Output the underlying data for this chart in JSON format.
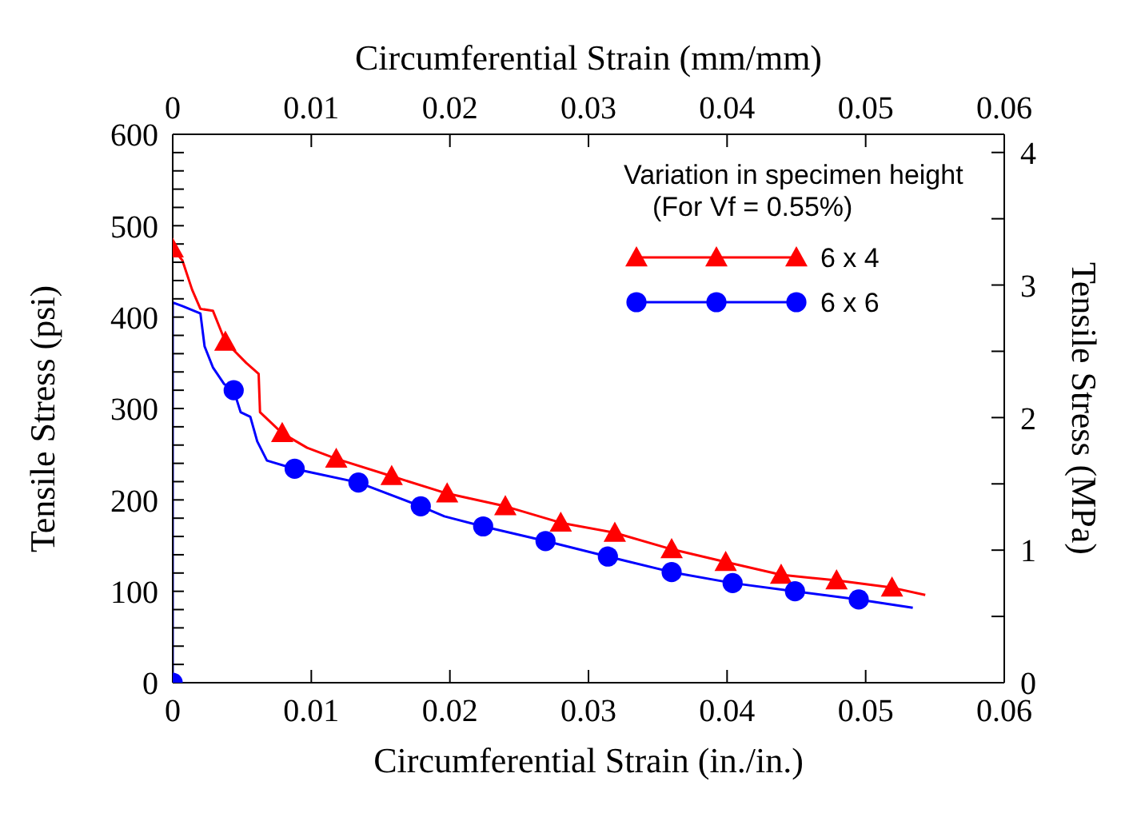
{
  "chart_data": {
    "type": "line",
    "xlabel": "Circumferential Strain (in./in.)",
    "x2label": "Circumferential Strain (mm/mm)",
    "ylabel": "Tensile Stress (psi)",
    "y2label": "Tensile Stress (MPa)",
    "legend_title": "Variation in specimen height\n(For Vf = 0.55%)",
    "xlim": [
      0,
      0.06
    ],
    "xticks": [
      0,
      0.01,
      0.02,
      0.03,
      0.04,
      0.05,
      0.06
    ],
    "x2lim": [
      0,
      0.06
    ],
    "x2ticks": [
      0,
      0.01,
      0.02,
      0.03,
      0.04,
      0.05,
      0.06
    ],
    "ylim": [
      0,
      600
    ],
    "yticks": [
      0,
      {
        "value": 20,
        "label": null
      },
      {
        "value": 40,
        "label": null
      },
      {
        "value": 60,
        "label": null
      },
      {
        "value": 80,
        "label": null
      },
      100,
      {
        "value": 120,
        "label": null
      },
      {
        "value": 140,
        "label": null
      },
      {
        "value": 160,
        "label": null
      },
      {
        "value": 180,
        "label": null
      },
      200,
      {
        "value": 220,
        "label": null
      },
      {
        "value": 240,
        "label": null
      },
      {
        "value": 260,
        "label": null
      },
      {
        "value": 280,
        "label": null
      },
      300,
      {
        "value": 320,
        "label": null
      },
      {
        "value": 340,
        "label": null
      },
      {
        "value": 360,
        "label": null
      },
      {
        "value": 380,
        "label": null
      },
      400,
      {
        "value": 420,
        "label": null
      },
      {
        "value": 440,
        "label": null
      },
      {
        "value": 460,
        "label": null
      },
      {
        "value": 480,
        "label": null
      },
      500,
      {
        "value": 520,
        "label": null
      },
      {
        "value": 540,
        "label": null
      },
      {
        "value": 560,
        "label": null
      },
      {
        "value": 580,
        "label": null
      },
      600
    ],
    "y2lim": [
      0,
      4.137
    ],
    "y2ticks": [
      0,
      {
        "value": 0.5,
        "label": null
      },
      1,
      {
        "value": 1.5,
        "label": null
      },
      2,
      {
        "value": 2.5,
        "label": null
      },
      3,
      {
        "value": 3.5,
        "label": null
      },
      4
    ],
    "grid": false,
    "legend": "top right",
    "series": [
      {
        "name": "6 x 4",
        "color": "#ff0000",
        "marker": "none",
        "x": [
          0,
          0.0007,
          0.0014,
          0.002,
          0.0029,
          0.0038,
          0.0053,
          0.0062,
          0.0063,
          0.0079,
          0.0097,
          0.0118,
          0.016,
          0.0198,
          0.024,
          0.028,
          0.0319,
          0.036,
          0.0399,
          0.0439,
          0.0479,
          0.0519,
          0.0543
        ],
        "values": [
          475,
          462,
          430,
          409,
          407,
          373,
          350,
          338,
          296,
          273,
          257,
          245,
          225,
          207,
          193,
          175,
          164,
          146,
          132,
          118,
          112,
          104,
          96
        ]
      },
      {
        "type": "scatter",
        "color": "#ff0000",
        "marker": "triangle",
        "x": [
          0,
          0.0038,
          0.0079,
          0.0118,
          0.0158,
          0.0198,
          0.024,
          0.028,
          0.0319,
          0.036,
          0.0399,
          0.0439,
          0.0479,
          0.0519
        ],
        "values": [
          475,
          373,
          273,
          245,
          226,
          207,
          193,
          175,
          164,
          146,
          132,
          118,
          112,
          104
        ]
      },
      {
        "name": "6 x 6",
        "color": "#0000ff",
        "marker": "none",
        "x": [
          0,
          0,
          0.0007,
          0.002,
          0.0023,
          0.0029,
          0.0037,
          0.0044,
          0.0049,
          0.0056,
          0.0061,
          0.0068,
          0.0088,
          0.01,
          0.0134,
          0.0179,
          0.0196,
          0.0224,
          0.0269,
          0.0314,
          0.036,
          0.0404,
          0.0449,
          0.0495,
          0.0534
        ],
        "values": [
          0,
          416,
          412,
          404,
          368,
          345,
          327,
          320,
          296,
          291,
          264,
          243,
          234,
          230,
          219,
          193,
          182,
          171,
          155,
          138,
          121,
          109,
          100,
          91,
          82
        ]
      },
      {
        "type": "scatter",
        "color": "#0000ff",
        "marker": "circle",
        "x": [
          0,
          0.0044,
          0.0088,
          0.0134,
          0.0179,
          0.0224,
          0.0269,
          0.0314,
          0.036,
          0.0404,
          0.0449,
          0.0495
        ],
        "values": [
          0,
          320,
          234,
          219,
          193,
          171,
          155,
          138,
          121,
          109,
          100,
          91
        ]
      }
    ]
  }
}
